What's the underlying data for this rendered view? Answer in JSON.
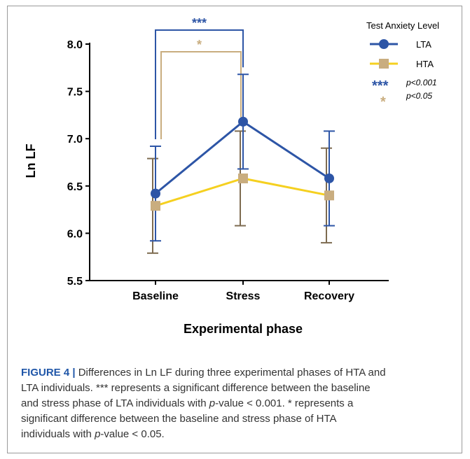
{
  "chart_data": {
    "type": "line",
    "categories": [
      "Baseline",
      "Stress",
      "Recovery"
    ],
    "xlabel": "Experimental phase",
    "ylabel": "Ln LF",
    "ylim": [
      5.5,
      8.0
    ],
    "yticks": [
      "5.5",
      "6.0",
      "6.5",
      "7.0",
      "7.5",
      "8.0"
    ],
    "grid": false,
    "legend": {
      "title": "Test Anxiety Level",
      "position": "top-right",
      "sig1_symbol": "***",
      "sig1_text": "p<0.001",
      "sig2_symbol": "*",
      "sig2_text": "p<0.05"
    },
    "series": [
      {
        "name": "LTA",
        "color": "#2d55a6",
        "marker": "circle",
        "values": [
          6.42,
          7.18,
          6.58
        ],
        "error_upper": [
          6.92,
          7.68,
          7.08
        ],
        "error_lower": [
          5.92,
          6.68,
          6.08
        ]
      },
      {
        "name": "HTA",
        "color": "#f5d020",
        "error_color": "#7d6b50",
        "marker": "square",
        "values": [
          6.29,
          6.58,
          6.4
        ],
        "error_upper": [
          6.79,
          7.08,
          6.9
        ],
        "error_lower": [
          5.79,
          6.08,
          5.9
        ]
      }
    ],
    "annotations": [
      {
        "text": "***",
        "from": "Baseline",
        "to": "Stress",
        "color": "#2d55a6",
        "series": "LTA"
      },
      {
        "text": "*",
        "from": "Baseline",
        "to": "Stress",
        "color": "#c9ad7f",
        "series": "HTA"
      }
    ]
  },
  "caption": {
    "label": "FIGURE 4 |",
    "line1": " Differences in Ln LF during three experimental phases of HTA and",
    "line2": "LTA individuals. *** represents a significant difference between the baseline",
    "line3a": "and stress phase of LTA individuals with ",
    "p1": "p",
    "line3b": "-value < 0.001. * represents a",
    "line4": "significant difference between the baseline and stress phase of HTA",
    "line5a": "individuals with ",
    "p2": "p",
    "line5b": "-value < 0.05."
  }
}
